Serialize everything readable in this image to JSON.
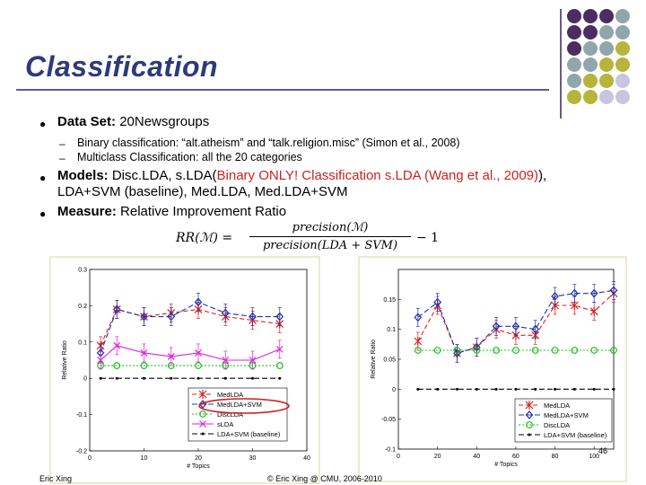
{
  "slide": {
    "title": "Classification",
    "bullets": [
      {
        "label": "Data Set:",
        "text": " 20Newsgroups"
      },
      {
        "label": "Models:",
        "text": "  Disc.LDA, s.LDA(",
        "red": "Binary ONLY! Classification s.LDA (Wang et al., 2009)",
        "tail": "),",
        "line2": "LDA+SVM (baseline), Med.LDA, Med.LDA+SVM"
      },
      {
        "label": "Measure:",
        "text": " Relative Improvement Ratio"
      }
    ],
    "subbullets": [
      "Binary classification:  “alt.atheism”  and “talk.religion.misc” (Simon et al., 2008)",
      "Multiclass Classification: all the 20 categories"
    ],
    "formula": {
      "lhs": "RR(ℳ) =",
      "numerator": "precision(ℳ)",
      "denominator": "precision(LDA + SVM)",
      "rhs": "− 1"
    },
    "footer_left": "Eric Xing",
    "footer_center": "© Eric Xing @ CMU, 2006-2010",
    "page_number": "46"
  },
  "palette": {
    "purple": "#4b2d63",
    "gray_blue": "#8fa7ab",
    "olive": "#b5b53b",
    "lavender": "#c8c5e0"
  },
  "chart_data": [
    {
      "type": "line",
      "xlabel": "# Topics",
      "ylabel": "Relative Ratio",
      "xlim": [
        0,
        40
      ],
      "ylim": [
        -0.2,
        0.3
      ],
      "xticks": [
        "0",
        "10",
        "20",
        "30",
        "40"
      ],
      "yticks": [
        "-0.2",
        "-0.1",
        "0",
        "0.1",
        "0.2",
        "0.3"
      ],
      "x": [
        2,
        5,
        10,
        15,
        20,
        25,
        30,
        35
      ],
      "legend": [
        "MedLDA",
        "MedLDA+SVM",
        "DiscLDA",
        "sLDA",
        "LDA+SVM (baseline)"
      ],
      "series": [
        {
          "name": "MedLDA",
          "color": "#e02020",
          "values": [
            0.09,
            0.19,
            0.17,
            0.18,
            0.19,
            0.17,
            0.16,
            0.15
          ]
        },
        {
          "name": "MedLDA+SVM",
          "color": "#2030b0",
          "values": [
            0.07,
            0.19,
            0.17,
            0.17,
            0.21,
            0.18,
            0.17,
            0.17
          ]
        },
        {
          "name": "DiscLDA",
          "color": "#20c020",
          "values": [
            0.035,
            0.035,
            0.035,
            0.035,
            0.035,
            0.035,
            0.035,
            0.035
          ]
        },
        {
          "name": "sLDA",
          "color": "#e020e0",
          "values": [
            0.05,
            0.09,
            0.07,
            0.06,
            0.07,
            0.05,
            0.05,
            0.08
          ]
        },
        {
          "name": "LDA+SVM (baseline)",
          "color": "#000000",
          "values": [
            0,
            0,
            0,
            0,
            0,
            0,
            0,
            0
          ]
        }
      ]
    },
    {
      "type": "line",
      "xlabel": "# Topics",
      "ylabel": "Relative Ratio",
      "xlim": [
        0,
        110
      ],
      "ylim": [
        -0.1,
        0.2
      ],
      "xticks": [
        "0",
        "20",
        "40",
        "60",
        "80",
        "100"
      ],
      "yticks": [
        "-0.1",
        "-0.05",
        "0",
        "0.05",
        "0.1",
        "0.15"
      ],
      "x": [
        10,
        20,
        30,
        40,
        50,
        60,
        70,
        80,
        90,
        100,
        110
      ],
      "legend": [
        "MedLDA",
        "MedLDA+SVM",
        "DiscLDA",
        "LDA+SVM (baseline)"
      ],
      "series": [
        {
          "name": "MedLDA",
          "color": "#e02020",
          "values": [
            0.08,
            0.14,
            0.06,
            0.07,
            0.1,
            0.09,
            0.09,
            0.14,
            0.14,
            0.13,
            0.16
          ]
        },
        {
          "name": "MedLDA+SVM",
          "color": "#2030b0",
          "values": [
            0.12,
            0.145,
            0.06,
            0.07,
            0.105,
            0.105,
            0.1,
            0.155,
            0.16,
            0.16,
            0.165
          ]
        },
        {
          "name": "DiscLDA",
          "color": "#20c020",
          "values": [
            0.065,
            0.065,
            0.065,
            0.065,
            0.065,
            0.065,
            0.065,
            0.065,
            0.065,
            0.065,
            0.065
          ]
        },
        {
          "name": "LDA+SVM (baseline)",
          "color": "#000000",
          "values": [
            0,
            0,
            0,
            0,
            0,
            0,
            0,
            0,
            0,
            0,
            0
          ]
        }
      ]
    }
  ]
}
